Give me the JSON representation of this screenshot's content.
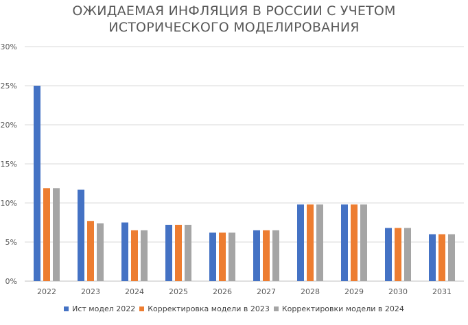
{
  "chart_data": {
    "type": "bar",
    "title": [
      "ОЖИДАЕМАЯ ИНФЛЯЦИЯ В РОССИИ С УЧЕТОМ",
      "ИСТОРИЧЕСКОГО МОДЕЛИРОВАНИЯ"
    ],
    "xlabel": "",
    "ylabel": "",
    "ylim": [
      0,
      30
    ],
    "yticks": [
      "0%",
      "5%",
      "10%",
      "15%",
      "20%",
      "25%",
      "30%"
    ],
    "grid": true,
    "legend_position": "bottom",
    "categories": [
      "2022",
      "2023",
      "2024",
      "2025",
      "2026",
      "2027",
      "2028",
      "2029",
      "2030",
      "2031"
    ],
    "series": [
      {
        "name": "Ист модел 2022",
        "color": "#4472C4",
        "values": [
          25.0,
          11.7,
          7.5,
          7.2,
          6.2,
          6.5,
          9.8,
          9.8,
          6.8,
          6.0
        ]
      },
      {
        "name": "Корректировка модели в 2023",
        "color": "#ED7D31",
        "values": [
          11.9,
          7.7,
          6.5,
          7.2,
          6.2,
          6.5,
          9.8,
          9.8,
          6.8,
          6.0
        ]
      },
      {
        "name": "Корректировки модели в 2024",
        "color": "#A5A5A5",
        "values": [
          11.9,
          7.4,
          6.5,
          7.2,
          6.2,
          6.5,
          9.8,
          9.8,
          6.8,
          6.0
        ]
      }
    ]
  }
}
